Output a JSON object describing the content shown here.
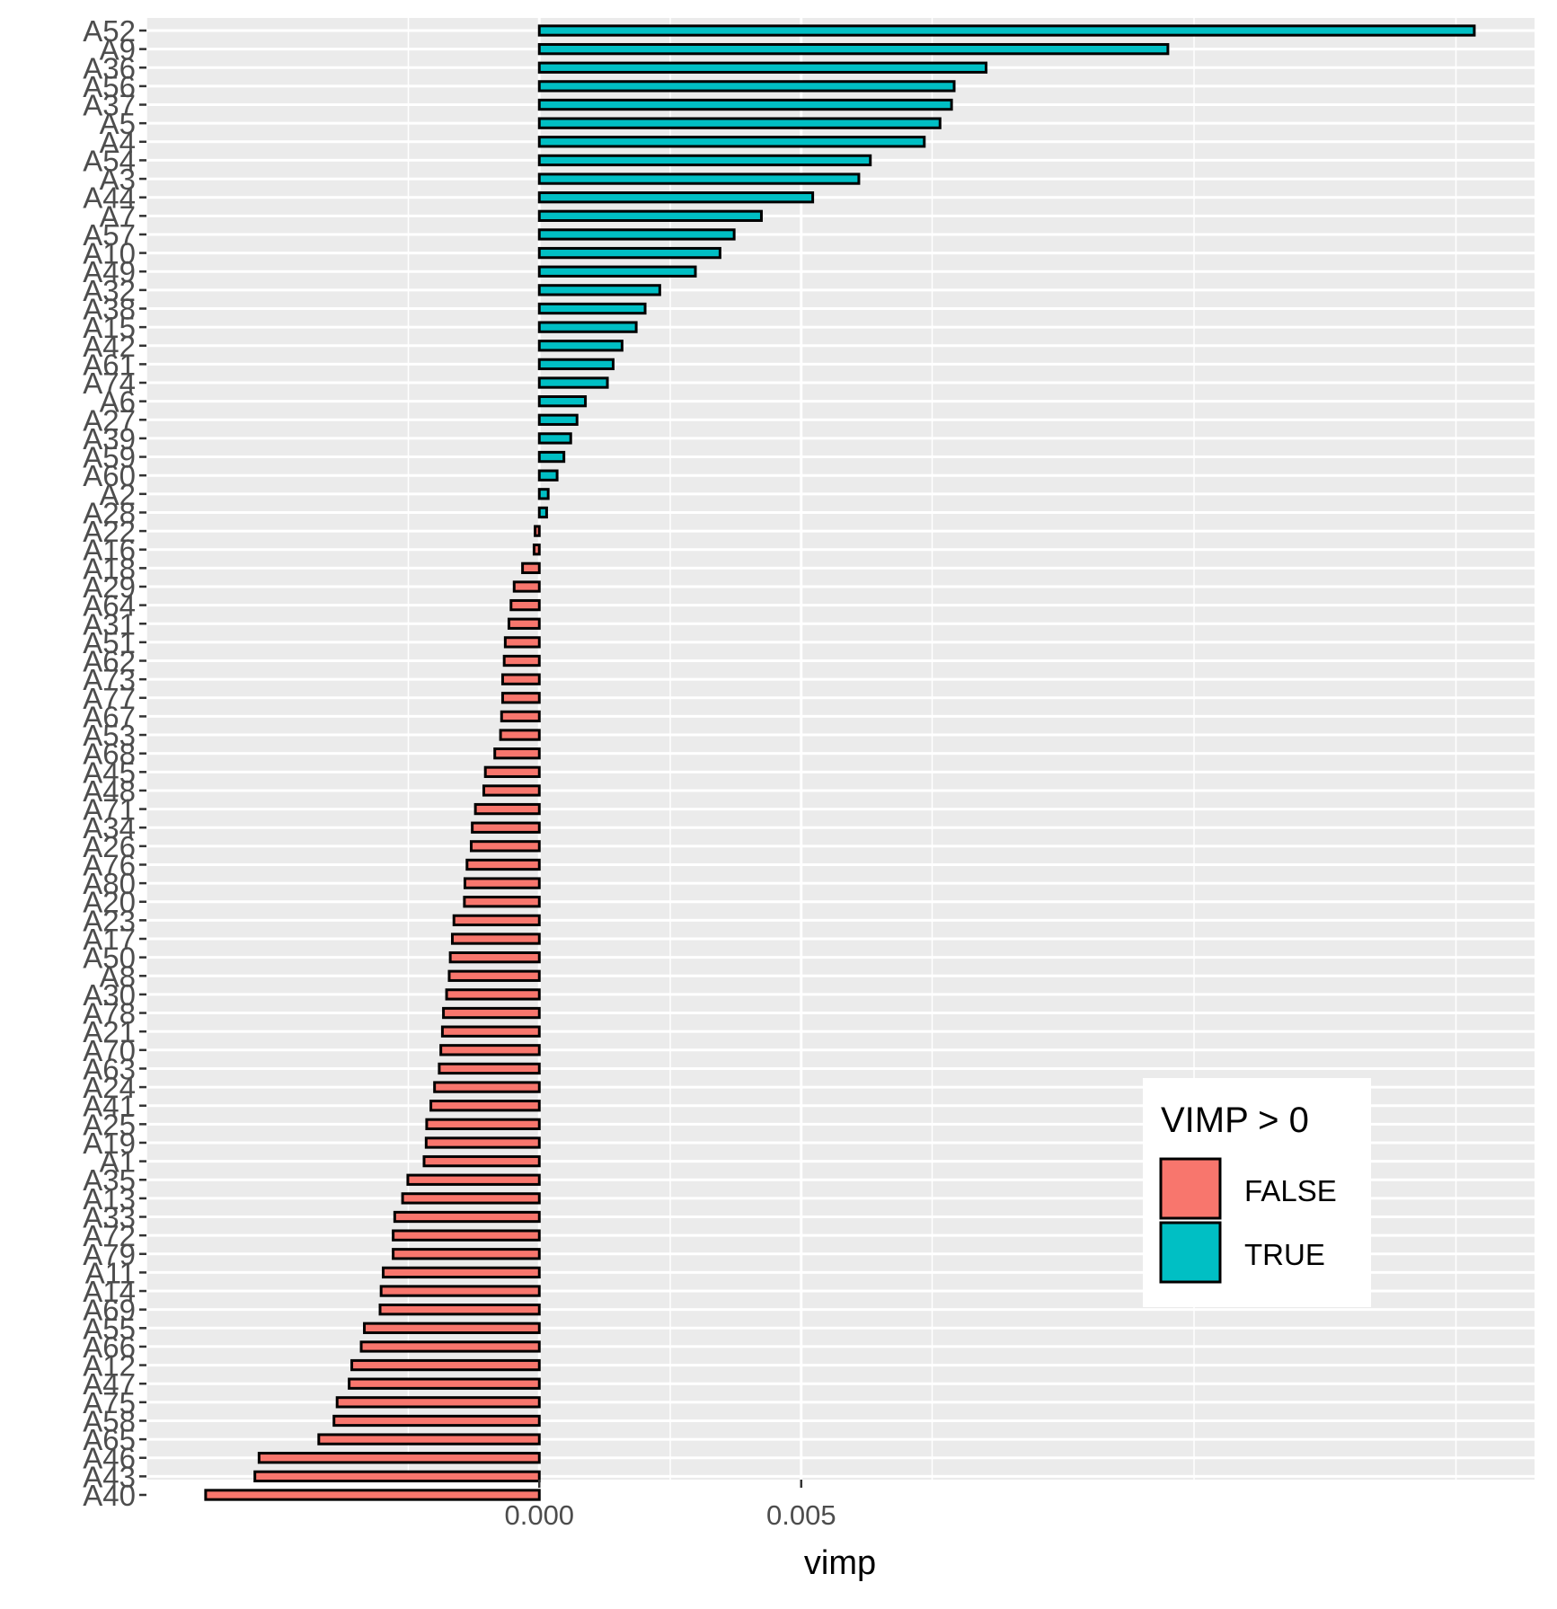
{
  "chart_data": {
    "type": "bar",
    "orientation": "horizontal",
    "xlabel": "vimp",
    "ylabel": "",
    "xlim": [
      -0.0075,
      0.019
    ],
    "xticks": [
      {
        "value": 0,
        "label": "0.000"
      },
      {
        "value": 0.005,
        "label": "0.005"
      }
    ],
    "grid": true,
    "legend": {
      "title": "VIMP > 0",
      "position": "bottom-right-inside",
      "entries": [
        {
          "label": "FALSE",
          "color": "#f8766d"
        },
        {
          "label": "TRUE",
          "color": "#00bfc4"
        }
      ]
    },
    "colors": {
      "positive": "#00bfc4",
      "negative": "#f8766d",
      "panel": "#ebebeb",
      "grid": "#ffffff"
    },
    "categories": [
      "A52",
      "A9",
      "A36",
      "A56",
      "A37",
      "A5",
      "A4",
      "A54",
      "A3",
      "A44",
      "A7",
      "A57",
      "A10",
      "A49",
      "A32",
      "A38",
      "A15",
      "A42",
      "A61",
      "A74",
      "A6",
      "A27",
      "A39",
      "A59",
      "A60",
      "A2",
      "A28",
      "A22",
      "A16",
      "A18",
      "A29",
      "A64",
      "A31",
      "A51",
      "A62",
      "A73",
      "A77",
      "A67",
      "A53",
      "A68",
      "A45",
      "A48",
      "A71",
      "A34",
      "A26",
      "A76",
      "A80",
      "A20",
      "A23",
      "A17",
      "A50",
      "A8",
      "A30",
      "A78",
      "A21",
      "A70",
      "A63",
      "A24",
      "A41",
      "A25",
      "A19",
      "A1",
      "A35",
      "A13",
      "A33",
      "A72",
      "A79",
      "A11",
      "A14",
      "A69",
      "A55",
      "A66",
      "A12",
      "A47",
      "A75",
      "A58",
      "A65",
      "A46",
      "A43",
      "A40"
    ],
    "values": [
      0.01785,
      0.012,
      0.00853,
      0.00792,
      0.00787,
      0.00765,
      0.00735,
      0.00632,
      0.0061,
      0.00522,
      0.00424,
      0.00372,
      0.00345,
      0.00298,
      0.0023,
      0.00202,
      0.00185,
      0.00158,
      0.00141,
      0.0013,
      0.00088,
      0.00072,
      0.0006,
      0.00047,
      0.00034,
      0.00017,
      0.00014,
      -8e-05,
      -0.0001,
      -0.00032,
      -0.00048,
      -0.00054,
      -0.00058,
      -0.00065,
      -0.00067,
      -0.0007,
      -0.0007,
      -0.00072,
      -0.00074,
      -0.00085,
      -0.00103,
      -0.00106,
      -0.00122,
      -0.00128,
      -0.0013,
      -0.00138,
      -0.00142,
      -0.00143,
      -0.00163,
      -0.00166,
      -0.0017,
      -0.00172,
      -0.00177,
      -0.00183,
      -0.00185,
      -0.00188,
      -0.00191,
      -0.002,
      -0.00207,
      -0.00215,
      -0.00216,
      -0.0022,
      -0.00251,
      -0.00261,
      -0.00276,
      -0.00279,
      -0.00279,
      -0.00298,
      -0.00302,
      -0.00304,
      -0.00334,
      -0.0034,
      -0.00358,
      -0.00363,
      -0.00386,
      -0.00392,
      -0.00421,
      -0.00535,
      -0.00543,
      -0.00637
    ]
  }
}
